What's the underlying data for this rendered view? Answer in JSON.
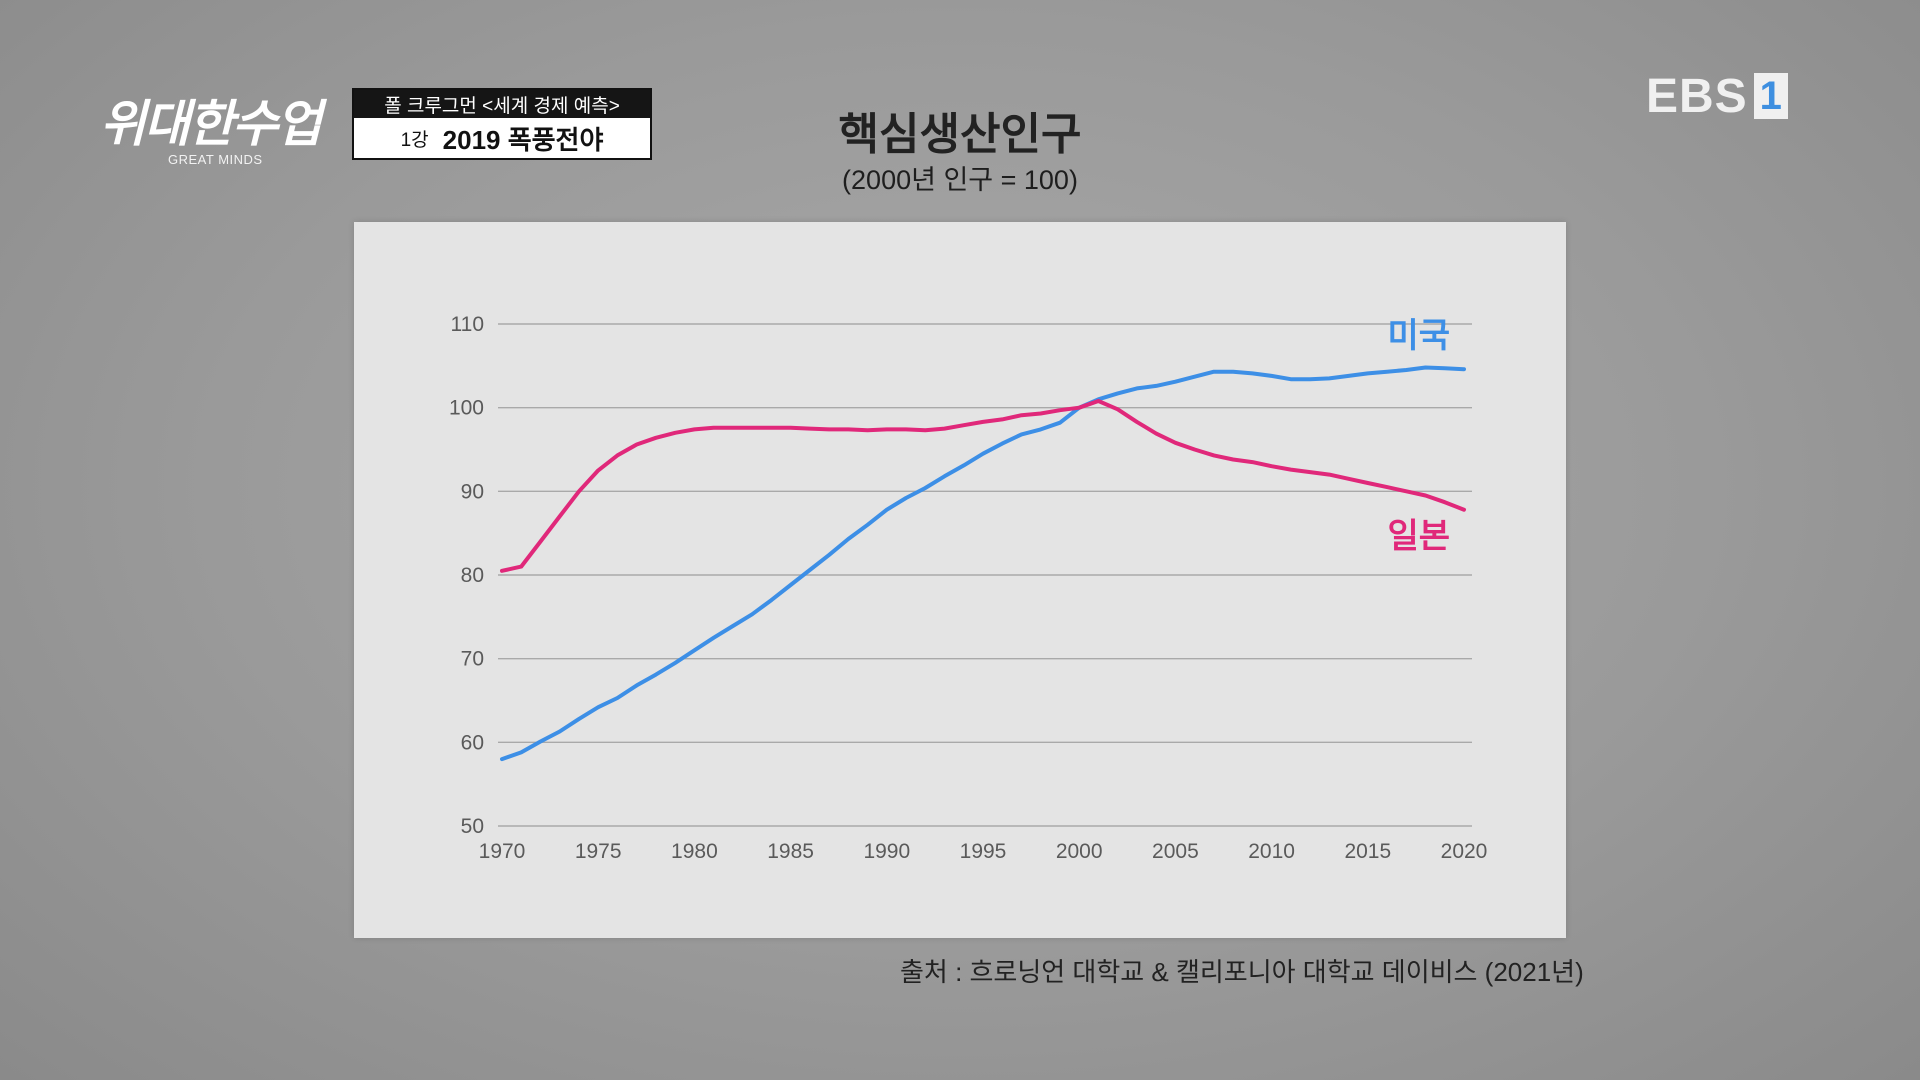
{
  "program": {
    "logo_script": "위대한수업",
    "logo_sub": "GREAT MINDS",
    "lecture_series": "폴 크루그먼 <세계 경제 예측>",
    "lecture_number": "1강",
    "lecture_title": "2019 폭풍전야"
  },
  "broadcaster": {
    "name": "EBS",
    "channel": "1"
  },
  "source_note": "출처 : 흐로닝언 대학교 & 캘리포니아 대학교 데이비스 (2021년)",
  "colors": {
    "usa": "#3d8fe6",
    "japan": "#e0287a",
    "grid": "#a9a9a9",
    "axis_text": "#5a5a5a"
  },
  "chart_data": {
    "type": "line",
    "title": "핵심생산인구",
    "subtitle": "(2000년 인구 = 100)",
    "xlabel": "",
    "ylabel": "",
    "xlim": [
      1970,
      2020
    ],
    "ylim": [
      50,
      110
    ],
    "x_ticks": [
      1970,
      1975,
      1980,
      1985,
      1990,
      1995,
      2000,
      2005,
      2010,
      2015,
      2020
    ],
    "y_ticks": [
      50,
      60,
      70,
      80,
      90,
      100,
      110
    ],
    "grid": "horizontal",
    "legend": "inline labels at right",
    "x": [
      1970,
      1971,
      1972,
      1973,
      1974,
      1975,
      1976,
      1977,
      1978,
      1979,
      1980,
      1981,
      1982,
      1983,
      1984,
      1985,
      1986,
      1987,
      1988,
      1989,
      1990,
      1991,
      1992,
      1993,
      1994,
      1995,
      1996,
      1997,
      1998,
      1999,
      2000,
      2001,
      2002,
      2003,
      2004,
      2005,
      2006,
      2007,
      2008,
      2009,
      2010,
      2011,
      2012,
      2013,
      2014,
      2015,
      2016,
      2017,
      2018,
      2019,
      2020
    ],
    "series": [
      {
        "name": "미국",
        "values": [
          58.0,
          58.8,
          60.1,
          61.3,
          62.8,
          64.2,
          65.3,
          66.8,
          68.1,
          69.5,
          71.0,
          72.5,
          73.9,
          75.3,
          77.0,
          78.8,
          80.6,
          82.4,
          84.3,
          86.0,
          87.8,
          89.2,
          90.4,
          91.8,
          93.1,
          94.5,
          95.7,
          96.8,
          97.4,
          98.2,
          100.0,
          101.0,
          101.7,
          102.3,
          102.6,
          103.1,
          103.7,
          104.3,
          104.3,
          104.1,
          103.8,
          103.4,
          103.4,
          103.5,
          103.8,
          104.1,
          104.3,
          104.5,
          104.8,
          104.7,
          104.6
        ],
        "color": "#3d8fe6"
      },
      {
        "name": "일본",
        "values": [
          80.5,
          81.0,
          84.0,
          87.0,
          90.0,
          92.5,
          94.3,
          95.6,
          96.4,
          97.0,
          97.4,
          97.6,
          97.6,
          97.6,
          97.6,
          97.6,
          97.5,
          97.4,
          97.4,
          97.3,
          97.4,
          97.4,
          97.3,
          97.5,
          97.9,
          98.3,
          98.6,
          99.1,
          99.3,
          99.7,
          100.0,
          100.8,
          99.8,
          98.3,
          96.9,
          95.8,
          95.0,
          94.3,
          93.8,
          93.5,
          93.0,
          92.6,
          92.3,
          92.0,
          91.5,
          91.0,
          90.5,
          90.0,
          89.5,
          88.7,
          87.8
        ],
        "color": "#e0287a"
      }
    ]
  }
}
